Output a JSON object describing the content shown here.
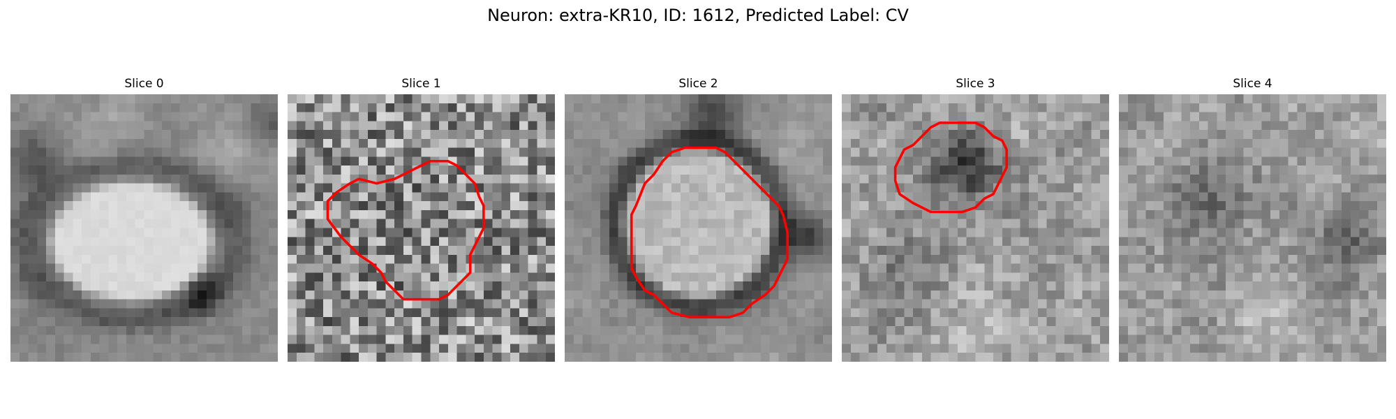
{
  "figure": {
    "title": "Neuron: extra-KR10, ID: 1612, Predicted Label: CV",
    "contour_color": "#ff0000",
    "colormap": "grayscale",
    "grid_size": 30
  },
  "panels": [
    {
      "title": "Slice 0",
      "contour": false
    },
    {
      "title": "Slice 1",
      "contour": true
    },
    {
      "title": "Slice 2",
      "contour": true
    },
    {
      "title": "Slice 3",
      "contour": true
    },
    {
      "title": "Slice 4",
      "contour": false
    }
  ]
}
